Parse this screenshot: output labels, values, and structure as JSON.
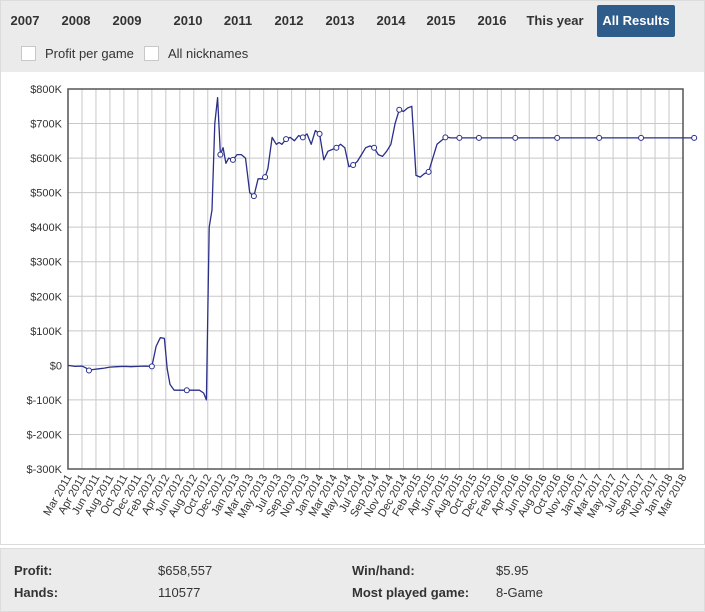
{
  "tabs": [
    "2007",
    "2008",
    "2009",
    "2010",
    "2011",
    "2012",
    "2013",
    "2014",
    "2015",
    "2016",
    "This year",
    "All Results"
  ],
  "active_tab": "All Results",
  "options": {
    "profit_per_game": "Profit per game",
    "all_nicknames": "All nicknames"
  },
  "colors": {
    "line": "#2b2f8a",
    "active_tab": "#2e5d8c",
    "grid": "#c8c8c8"
  },
  "chart_data": {
    "type": "line",
    "ylim": [
      -300000,
      800000
    ],
    "y_ticks": [
      "$-300K",
      "$-200K",
      "$-100K",
      "$0",
      "$100K",
      "$200K",
      "$300K",
      "$400K",
      "$500K",
      "$600K",
      "$700K",
      "$800K"
    ],
    "x_tick_labels": [
      "Mar 2011",
      "Apr 2011",
      "Jun 2011",
      "Aug 2011",
      "Oct 2011",
      "Dec 2011",
      "Feb 2012",
      "Apr 2012",
      "Jun 2012",
      "Aug 2012",
      "Oct 2012",
      "Dec 2012",
      "Jan 2013",
      "Mar 2013",
      "May 2013",
      "Jul 2013",
      "Sep 2013",
      "Nov 2013",
      "Jan 2014",
      "Mar 2014",
      "May 2014",
      "Jul 2014",
      "Sep 2014",
      "Nov 2014",
      "Dec 2014",
      "Feb 2015",
      "Apr 2015",
      "Jun 2015",
      "Aug 2015",
      "Oct 2015",
      "Dec 2015",
      "Feb 2016",
      "Apr 2016",
      "Jun 2016",
      "Aug 2016",
      "Oct 2016",
      "Nov 2016",
      "Jan 2017",
      "Mar 2017",
      "May 2017",
      "Jul 2017",
      "Sep 2017",
      "Nov 2017",
      "Jan 2018",
      "Mar 2018"
    ],
    "series": [
      {
        "x": [
          0,
          0.5,
          1,
          1.3,
          1.5,
          1.8,
          2.2,
          2.6,
          3,
          3.5,
          4,
          4.5,
          5,
          5.5,
          6,
          6.3,
          6.6,
          6.9,
          7.1,
          7.3,
          7.6,
          8,
          8.5,
          9,
          9.4,
          9.7,
          9.9,
          10.1,
          10.3,
          10.5,
          10.7,
          10.9,
          11.1,
          11.3,
          11.5,
          11.8,
          12.1,
          12.4,
          12.7,
          13,
          13.3,
          13.6,
          13.9,
          14.1,
          14.3,
          14.6,
          14.9,
          15.1,
          15.3,
          15.6,
          15.9,
          16.2,
          16.5,
          16.8,
          17.1,
          17.4,
          17.7,
          18,
          18.3,
          18.6,
          18.9,
          19.2,
          19.5,
          19.8,
          20.1,
          20.4,
          20.7,
          21,
          21.3,
          21.6,
          21.9,
          22.2,
          22.5,
          22.8,
          23.1,
          23.4,
          23.7,
          24,
          24.3,
          24.6,
          24.9,
          25.2,
          25.5,
          25.8,
          26.1,
          26.4,
          26.7,
          27,
          27.2,
          27.4,
          27.6,
          27.8,
          28,
          28.2,
          28.5,
          28.8,
          29.1,
          29.4,
          29.7,
          30,
          31,
          32,
          33,
          34,
          35,
          36,
          37,
          38,
          39,
          40,
          41,
          42,
          43,
          44.8
        ],
        "values": [
          0,
          -3000,
          -2000,
          -8000,
          -15000,
          -12000,
          -10000,
          -8000,
          -5000,
          -4000,
          -3000,
          -4000,
          -3000,
          -2000,
          -3000,
          55000,
          80000,
          78000,
          -10000,
          -55000,
          -72000,
          -72000,
          -72000,
          -72000,
          -72000,
          -80000,
          -100000,
          400000,
          450000,
          700000,
          775000,
          610000,
          630000,
          585000,
          600000,
          595000,
          610000,
          610000,
          600000,
          500000,
          490000,
          540000,
          540000,
          545000,
          570000,
          660000,
          640000,
          645000,
          640000,
          655000,
          660000,
          650000,
          665000,
          660000,
          670000,
          640000,
          680000,
          670000,
          595000,
          620000,
          625000,
          630000,
          640000,
          630000,
          575000,
          580000,
          590000,
          610000,
          630000,
          635000,
          630000,
          610000,
          605000,
          620000,
          640000,
          700000,
          740000,
          735000,
          745000,
          750000,
          550000,
          545000,
          555000,
          560000,
          600000,
          640000,
          650000,
          660000,
          660000,
          658557,
          658557,
          658557,
          658557,
          658557,
          658557,
          658557,
          658557,
          658557,
          658557,
          658557,
          658557,
          658557,
          658557,
          658557,
          658557,
          658557,
          658557,
          658557,
          658557,
          658557,
          658557,
          658557,
          658557,
          658557
        ],
        "markers_at": [
          4,
          14,
          22,
          31,
          35,
          40,
          43,
          49,
          53,
          57,
          61,
          65,
          70,
          76,
          83,
          87,
          92,
          97,
          101,
          104,
          107,
          110,
          113
        ]
      }
    ]
  },
  "stats": {
    "profit_label": "Profit:",
    "profit_value": "$658,557",
    "hands_label": "Hands:",
    "hands_value": "110577",
    "winhand_label": "Win/hand:",
    "winhand_value": "$5.95",
    "game_label": "Most played game:",
    "game_value": "8-Game"
  }
}
